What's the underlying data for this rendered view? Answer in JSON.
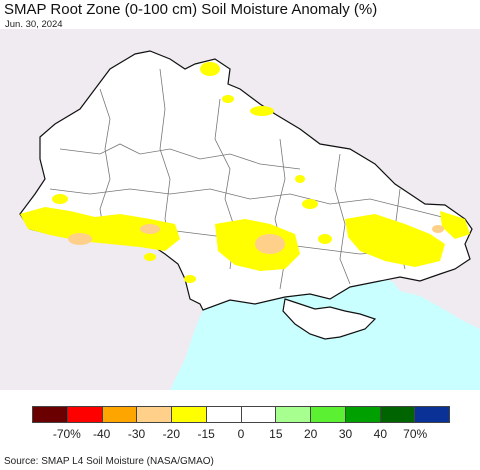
{
  "header": {
    "title": "SMAP Root Zone (0-100 cm) Soil Moisture Anomaly (%)",
    "date": "Jun. 30, 2024"
  },
  "map": {
    "colors": {
      "outside": "#efebf0",
      "land": "#ffffff",
      "sea": "#c9ffff",
      "border": "#111111",
      "oblast": "#777777"
    }
  },
  "legend": {
    "colors": [
      "#6b0000",
      "#ff0000",
      "#ffa500",
      "#ffd08a",
      "#ffff00",
      "#ffffff",
      "#ffffff",
      "#a6ff8f",
      "#5cf032",
      "#00a000",
      "#006400",
      "#0a3296"
    ],
    "labels": [
      "-70%",
      "-40",
      "-30",
      "-20",
      "-15",
      "0",
      "15",
      "20",
      "30",
      "40",
      "70%"
    ]
  },
  "footer": {
    "source": "Source: SMAP L4 Soil Moisture (NASA/GMAO)"
  }
}
